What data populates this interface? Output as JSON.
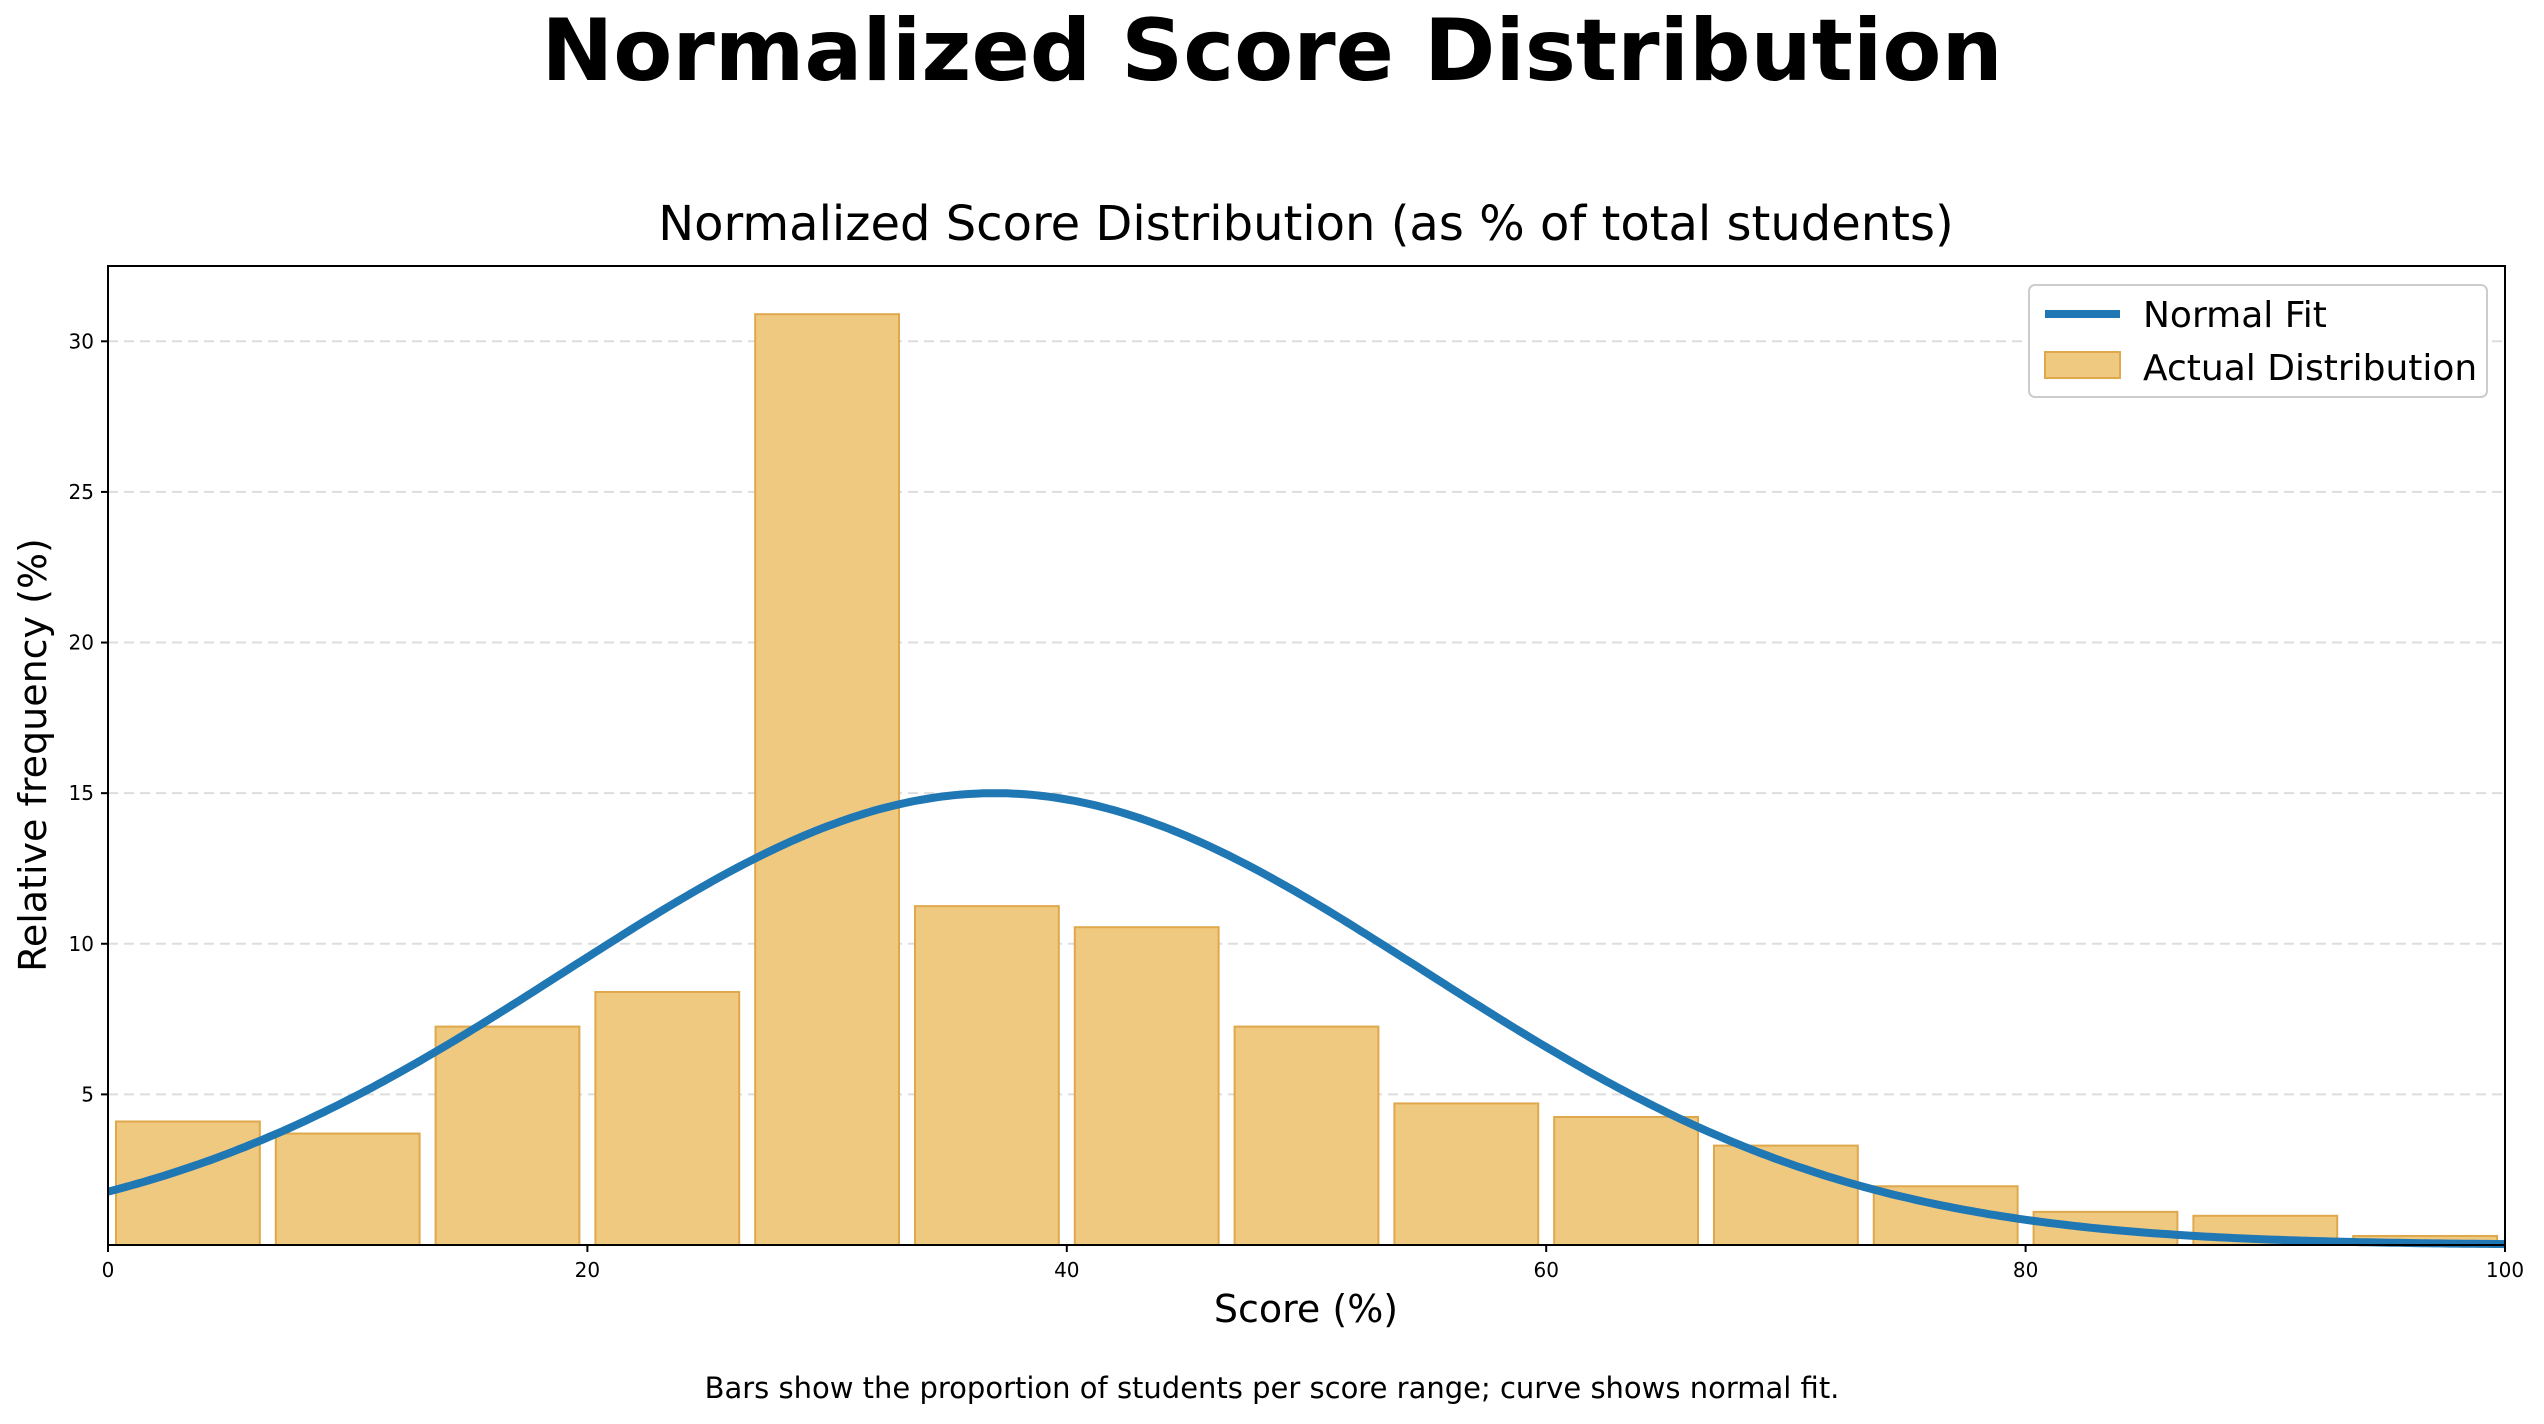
{
  "figure_title": "Normalized Score Distribution",
  "caption": "Bars show the proportion of students per score range; curve shows normal fit.",
  "colors": {
    "bar_fill": "#f0c980",
    "bar_edge": "#e0a84c",
    "curve": "#1f77b4",
    "grid": "#dddddd"
  },
  "chart_data": {
    "type": "bar",
    "title": "Normalized Score Distribution (as % of total students)",
    "xlabel": "Score (%)",
    "ylabel": "Relative frequency (%)",
    "xlim": [
      0,
      100
    ],
    "ylim": [
      0,
      32.5
    ],
    "xticks": [
      "0",
      "20",
      "40",
      "60",
      "80",
      "100"
    ],
    "yticks": [
      "5",
      "10",
      "15",
      "20",
      "25",
      "30"
    ],
    "grid": "y, dashed",
    "legend_position": "top-right",
    "bins": {
      "start": 0,
      "end": 100,
      "count": 15
    },
    "series": [
      {
        "name": "Actual Distribution",
        "type": "bar",
        "values": [
          4.1,
          3.7,
          7.25,
          8.4,
          30.9,
          11.25,
          10.55,
          7.25,
          4.7,
          4.25,
          3.3,
          1.95,
          1.1,
          0.97,
          0.3
        ]
      },
      {
        "name": "Normal Fit",
        "type": "line",
        "mean": 37.0,
        "std": 17.9,
        "peak": 15.0
      }
    ]
  }
}
